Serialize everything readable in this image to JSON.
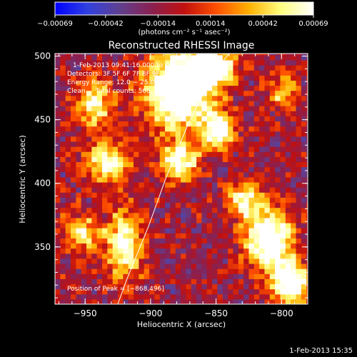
{
  "chart_data": {
    "type": "heatmap",
    "title": "Reconstructed RHESSI Image",
    "xlabel": "Heliocentric X (arcsec)",
    "ylabel": "Heliocentric Y (arcsec)",
    "xlim": [
      -973,
      -780
    ],
    "ylim": [
      305,
      502
    ],
    "xticks": [
      -950,
      -900,
      -850,
      -800
    ],
    "xtick_labels": [
      "−950",
      "−900",
      "−850",
      "−800"
    ],
    "yticks": [
      350,
      400,
      450,
      500
    ],
    "ytick_labels": [
      "350",
      "400",
      "450",
      "500"
    ],
    "colorbar": {
      "range": [
        -0.00069,
        0.00069
      ],
      "ticks": [
        -0.00069,
        -0.00042,
        -0.00014,
        0.00014,
        0.00042,
        0.00069
      ],
      "tick_labels": [
        "−0.00069",
        "−0.00042",
        "−0.00014",
        "0.00014",
        "0.00042",
        "0.00069"
      ],
      "unit_label": "(photons cm⁻² s⁻¹ asec⁻²)",
      "colors": [
        "#0000ff",
        "#3040e0",
        "#604090",
        "#8a2050",
        "#c01010",
        "#ff5000",
        "#ffb000",
        "#ffff80",
        "#ffffff"
      ]
    },
    "annotations": {
      "time_range": "1-Feb-2013 09:41:16.000 to 09:42:00.000",
      "detectors": "Detectors: 3F 5F 6F 7F 8F 9F 10 0",
      "energy_range": "Energy Range: 12.0 − 25.0 keV",
      "clean": "Clean     Total counts: 560",
      "peak": "Position of Peak = [−868,496]"
    },
    "limb_curve": {
      "x": [
        -925,
        -918,
        -910,
        -902,
        -895,
        -888,
        -880,
        -872,
        -864,
        -856,
        -848,
        -840
      ],
      "y": [
        305,
        325,
        345,
        365,
        385,
        405,
        425,
        445,
        462,
        478,
        492,
        502
      ]
    },
    "bright_regions": [
      {
        "x": -880,
        "y": 472,
        "sx": 18,
        "sy": 22,
        "amp": 0.9
      },
      {
        "x": -855,
        "y": 490,
        "sx": 12,
        "sy": 10,
        "amp": 0.75
      },
      {
        "x": -850,
        "y": 440,
        "sx": 8,
        "sy": 10,
        "amp": 0.7
      },
      {
        "x": -880,
        "y": 415,
        "sx": 10,
        "sy": 10,
        "amp": 0.65
      },
      {
        "x": -935,
        "y": 415,
        "sx": 12,
        "sy": 12,
        "amp": 0.55
      },
      {
        "x": -945,
        "y": 462,
        "sx": 10,
        "sy": 14,
        "amp": 0.5
      },
      {
        "x": -922,
        "y": 350,
        "sx": 10,
        "sy": 18,
        "amp": 0.6
      },
      {
        "x": -955,
        "y": 360,
        "sx": 10,
        "sy": 10,
        "amp": 0.45
      },
      {
        "x": -812,
        "y": 355,
        "sx": 12,
        "sy": 16,
        "amp": 0.85
      },
      {
        "x": -795,
        "y": 320,
        "sx": 10,
        "sy": 12,
        "amp": 0.8
      },
      {
        "x": -830,
        "y": 385,
        "sx": 10,
        "sy": 10,
        "amp": 0.5
      },
      {
        "x": -800,
        "y": 470,
        "sx": 8,
        "sy": 10,
        "amp": 0.4
      }
    ]
  },
  "footer": {
    "date_stamp": "1-Feb-2013 15:35"
  }
}
